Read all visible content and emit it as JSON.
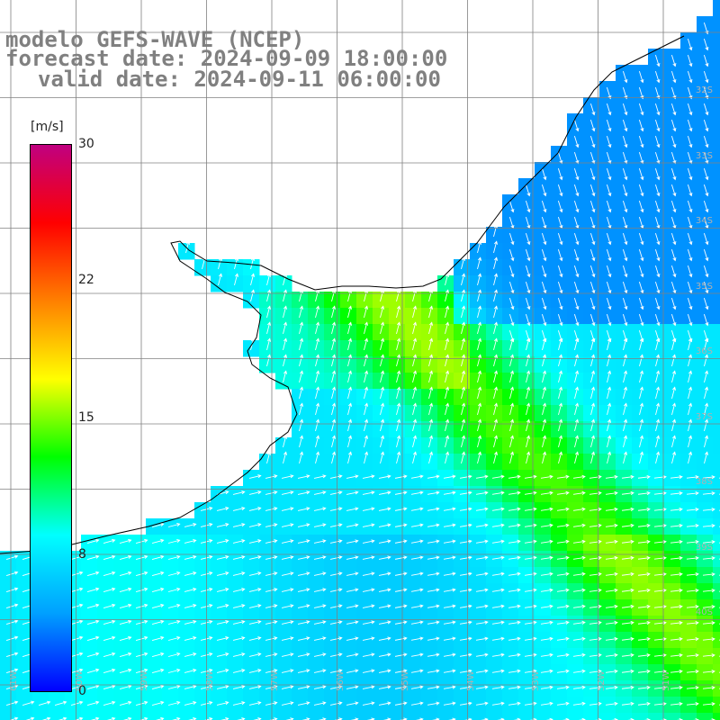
{
  "title": {
    "line1": "modelo GEFS-WAVE (NCEP)",
    "line2": "forecast date: 2024-09-09 18:00:00",
    "line3": "valid date: 2024-09-11 06:00:00"
  },
  "colorbar": {
    "unit": "[m/s]",
    "ticks": [
      {
        "label": "30",
        "value": 30
      },
      {
        "label": "22",
        "value": 22
      },
      {
        "label": "15",
        "value": 15
      },
      {
        "label": "8",
        "value": 8
      },
      {
        "label": "0",
        "value": 0
      }
    ],
    "stops": [
      "#0000ff",
      "#00a0ff",
      "#00ffff",
      "#00ff00",
      "#ffff00",
      "#ff8000",
      "#ff0000",
      "#c00080"
    ]
  },
  "map": {
    "lat_labels": [
      "32S",
      "33S",
      "34S",
      "35S",
      "36S",
      "37S",
      "38S",
      "39S",
      "40S"
    ],
    "lon_labels": [
      "61W",
      "60W",
      "59W",
      "58W",
      "57W",
      "56W",
      "55W",
      "54W",
      "53W",
      "52W",
      "51W"
    ],
    "land_color": "#ffffff",
    "coast_color": "#000000",
    "grid_color": "#808080",
    "arrow_color": "#ffffff"
  }
}
